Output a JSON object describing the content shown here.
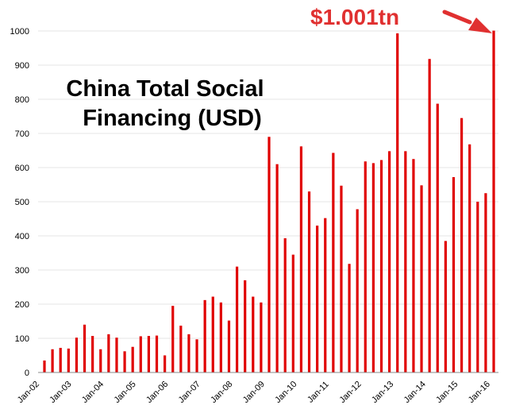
{
  "chart_data": {
    "type": "bar",
    "title_lines": [
      "China Total Social",
      "Financing (USD)"
    ],
    "xlabel": "",
    "ylabel": "",
    "ylim": [
      0,
      1000
    ],
    "yticks": [
      "0",
      "100",
      "200",
      "300",
      "400",
      "500",
      "600",
      "700",
      "800",
      "900",
      "1000"
    ],
    "x_tick_labels": [
      "Jan-02",
      "Jan-03",
      "Jan-04",
      "Jan-05",
      "Jan-06",
      "Jan-07",
      "Jan-08",
      "Jan-09",
      "Jan-10",
      "Jan-11",
      "Jan-12",
      "Jan-13",
      "Jan-14",
      "Jan-15",
      "Jan-16"
    ],
    "grid": true,
    "legend": "none",
    "bar_color": "#e00000",
    "callout": {
      "label": "$1.001tn",
      "value": 1001,
      "color": "#e03030"
    },
    "values": [
      35,
      68,
      72,
      70,
      102,
      140,
      107,
      68,
      112,
      102,
      62,
      75,
      106,
      107,
      108,
      50,
      195,
      137,
      112,
      97,
      212,
      222,
      205,
      152,
      310,
      270,
      222,
      205,
      690,
      610,
      393,
      345,
      662,
      530,
      430,
      452,
      643,
      547,
      318,
      478,
      618,
      613,
      622,
      648,
      993,
      648,
      625,
      548,
      918,
      787,
      385,
      572,
      745,
      668,
      500,
      525,
      1001
    ]
  }
}
